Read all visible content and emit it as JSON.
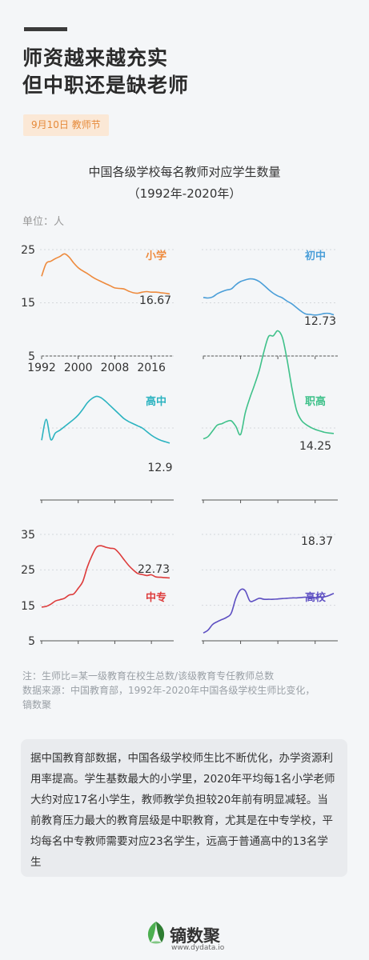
{
  "header": {
    "title_line1": "师资越来越充实",
    "title_line2": "但中职还是缺老师",
    "tag": "9月10日 教师节"
  },
  "chart_heading": {
    "line1": "中国各级学校每名教师对应学生数量",
    "line2": "（1992年-2020年）",
    "unit": "单位：人"
  },
  "chart_data": [
    {
      "type": "line",
      "name": "小学",
      "color": "#ee8a3c",
      "end_label": "16.67",
      "ylim": [
        5,
        25
      ],
      "yticks": [
        "25",
        "15",
        "5"
      ],
      "xticks": [
        "1992",
        "2000",
        "2008",
        "2016"
      ],
      "x": [
        1992,
        1993,
        1994,
        1995,
        1996,
        1997,
        1998,
        1999,
        2000,
        2001,
        2002,
        2003,
        2004,
        2005,
        2006,
        2007,
        2008,
        2009,
        2010,
        2011,
        2012,
        2013,
        2014,
        2015,
        2016,
        2017,
        2018,
        2019,
        2020
      ],
      "y": [
        20.0,
        22.4,
        22.8,
        23.3,
        23.7,
        24.2,
        23.6,
        22.5,
        21.6,
        21.0,
        20.5,
        19.9,
        19.4,
        19.0,
        18.6,
        18.2,
        17.8,
        17.7,
        17.6,
        17.2,
        16.9,
        16.8,
        17.0,
        17.1,
        17.0,
        17.0,
        16.9,
        16.8,
        16.67
      ]
    },
    {
      "type": "line",
      "name": "初中",
      "color": "#4a9ed8",
      "end_label": "12.73",
      "x": [
        1992,
        1993,
        1994,
        1995,
        1996,
        1997,
        1998,
        1999,
        2000,
        2001,
        2002,
        2003,
        2004,
        2005,
        2006,
        2007,
        2008,
        2009,
        2010,
        2011,
        2012,
        2013,
        2014,
        2015,
        2016,
        2017,
        2018,
        2019,
        2020
      ],
      "y": [
        16.0,
        15.9,
        16.1,
        16.7,
        17.1,
        17.4,
        17.6,
        18.4,
        19.0,
        19.3,
        19.5,
        19.4,
        19.0,
        18.3,
        17.5,
        16.8,
        16.3,
        15.9,
        15.3,
        14.8,
        14.1,
        13.4,
        12.9,
        12.8,
        12.7,
        12.8,
        13.0,
        13.0,
        12.73
      ]
    },
    {
      "type": "line",
      "name": "高中",
      "color": "#2bb3c0",
      "end_label": "12.9",
      "x": [
        1992,
        1993,
        1994,
        1995,
        1996,
        1997,
        1998,
        1999,
        2000,
        2001,
        2002,
        2003,
        2004,
        2005,
        2006,
        2007,
        2008,
        2009,
        2010,
        2011,
        2012,
        2013,
        2014,
        2015,
        2016,
        2017,
        2018,
        2019,
        2020
      ],
      "y": [
        13.3,
        16.2,
        13.4,
        14.3,
        14.7,
        15.2,
        15.7,
        16.2,
        16.8,
        17.6,
        18.5,
        19.1,
        19.4,
        19.2,
        18.7,
        18.1,
        17.5,
        16.9,
        16.3,
        15.9,
        15.6,
        15.3,
        15.0,
        14.5,
        14.0,
        13.6,
        13.3,
        13.1,
        12.9
      ]
    },
    {
      "type": "line",
      "name": "职高",
      "color": "#3fc18a",
      "end_label": "14.25",
      "x": [
        1992,
        1993,
        1994,
        1995,
        1996,
        1997,
        1998,
        1999,
        2000,
        2001,
        2002,
        2003,
        2004,
        2005,
        2006,
        2007,
        2008,
        2009,
        2010,
        2011,
        2012,
        2013,
        2014,
        2015,
        2016,
        2017,
        2018,
        2019,
        2020
      ],
      "y": [
        13.5,
        13.8,
        14.6,
        15.4,
        15.6,
        15.9,
        16.0,
        15.2,
        14.1,
        17.1,
        19.2,
        21.0,
        23.0,
        25.6,
        27.7,
        27.8,
        28.5,
        27.5,
        24.4,
        20.6,
        17.5,
        16.1,
        15.5,
        15.1,
        14.8,
        14.6,
        14.4,
        14.3,
        14.25
      ]
    },
    {
      "type": "line",
      "name": "中专",
      "color": "#dd3b3b",
      "end_label": "22.73",
      "ylim": [
        5,
        35
      ],
      "yticks": [
        "35",
        "25",
        "15",
        "5"
      ],
      "x": [
        1992,
        1993,
        1994,
        1995,
        1996,
        1997,
        1998,
        1999,
        2000,
        2001,
        2002,
        2003,
        2004,
        2005,
        2006,
        2007,
        2008,
        2009,
        2010,
        2011,
        2012,
        2013,
        2014,
        2015,
        2016,
        2017,
        2018,
        2019,
        2020
      ],
      "y": [
        14.5,
        14.7,
        15.3,
        16.2,
        16.6,
        17.0,
        17.9,
        18.2,
        19.8,
        21.7,
        25.8,
        29.0,
        31.4,
        31.8,
        31.4,
        31.1,
        30.9,
        29.6,
        27.9,
        26.3,
        25.0,
        24.0,
        23.7,
        23.4,
        23.6,
        23.0,
        22.9,
        22.8,
        22.73
      ]
    },
    {
      "type": "line",
      "name": "高校",
      "color": "#5d4fc2",
      "end_label": "18.37",
      "x": [
        1992,
        1993,
        1994,
        1995,
        1996,
        1997,
        1998,
        1999,
        2000,
        2001,
        2002,
        2003,
        2004,
        2005,
        2006,
        2007,
        2008,
        2009,
        2010,
        2011,
        2012,
        2013,
        2014,
        2015,
        2016,
        2017,
        2018,
        2019,
        2020
      ],
      "y": [
        7.2,
        8.0,
        9.6,
        10.4,
        11.0,
        11.6,
        12.8,
        17.1,
        19.4,
        19.1,
        16.2,
        16.4,
        17.0,
        16.7,
        16.7,
        16.7,
        16.8,
        16.9,
        17.0,
        17.1,
        17.1,
        17.2,
        17.3,
        17.0,
        17.2,
        17.3,
        17.4,
        17.8,
        18.37
      ]
    }
  ],
  "notes": {
    "line1": "注：生师比=某一级教育在校生总数/该级教育专任教师总数",
    "line2": "数据来源：中国教育部，1992年-2020年中国各级学校生师比变化，",
    "line3": "镝数聚"
  },
  "description": "据中国教育部数据，中国各级学校师生比不断优化，办学资源利用率提高。学生基数最大的小学里，2020年平均每1名小学老师大约对应17名小学生，教师教学负担较20年前有明显减轻。当前教育压力最大的教育层级是中职教育，尤其是在中专学校，平均每名中专教师需要对应23名学生，远高于普通高中的13名学生",
  "brand": {
    "name": "镝数聚",
    "url": "www.dydata.io"
  }
}
